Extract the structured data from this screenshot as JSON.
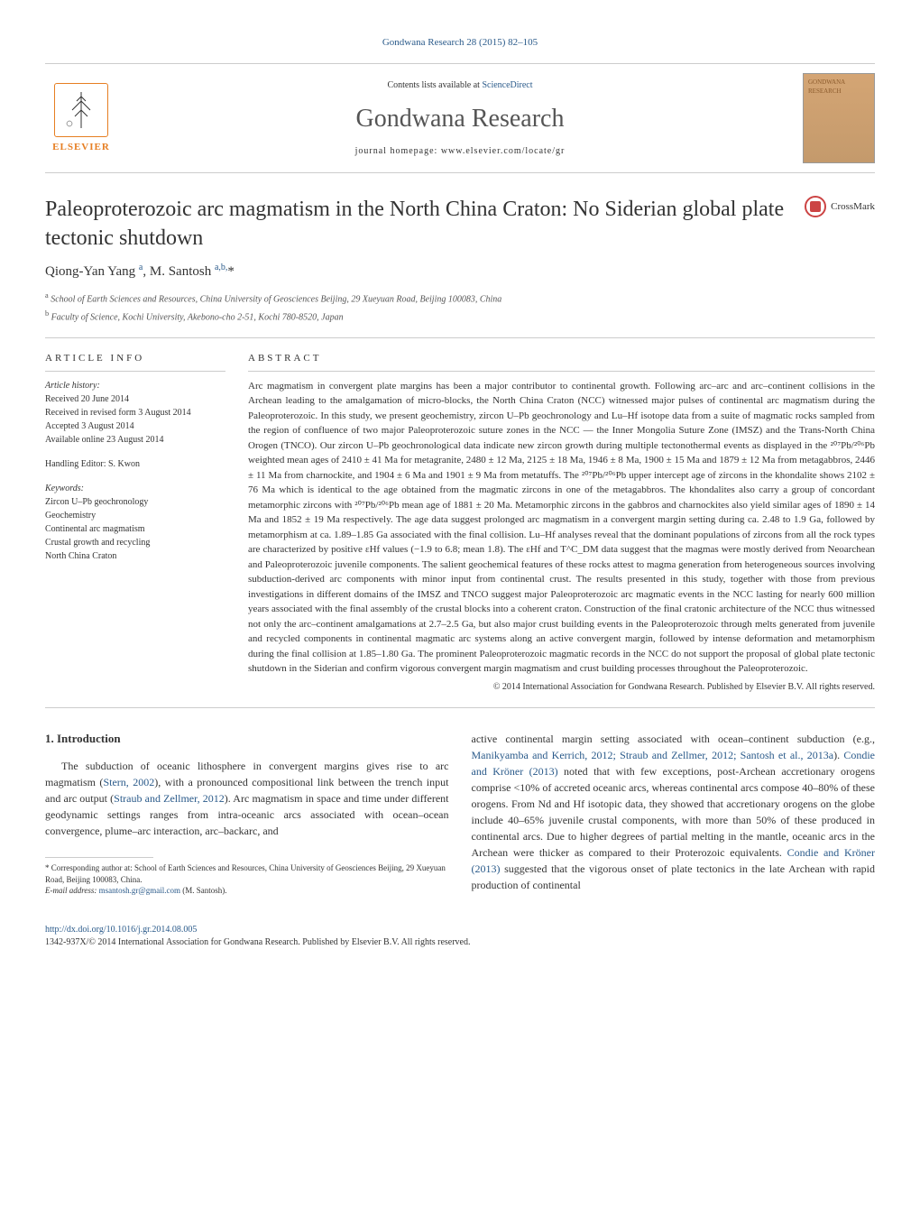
{
  "journal_ref": "Gondwana Research 28 (2015) 82–105",
  "header": {
    "contents_prefix": "Contents lists available at ",
    "contents_link": "ScienceDirect",
    "journal_name": "Gondwana Research",
    "homepage_label": "journal homepage: www.elsevier.com/locate/gr",
    "elsevier_label": "ELSEVIER",
    "cover_label": "GONDWANA RESEARCH"
  },
  "article": {
    "title": "Paleoproterozoic arc magmatism in the North China Craton: No Siderian global plate tectonic shutdown",
    "crossmark_label": "CrossMark",
    "authors_html": "Qiong-Yan Yang <sup>a</sup>, M. Santosh <sup>a,b,</sup>*",
    "affiliations": [
      "a   School of Earth Sciences and Resources, China University of Geosciences Beijing, 29 Xueyuan Road, Beijing 100083, China",
      "b   Faculty of Science, Kochi University, Akebono-cho 2-51, Kochi 780-8520, Japan"
    ]
  },
  "info": {
    "heading": "article info",
    "history_label": "Article history:",
    "history": [
      "Received 20 June 2014",
      "Received in revised form 3 August 2014",
      "Accepted 3 August 2014",
      "Available online 23 August 2014"
    ],
    "editor": "Handling Editor: S. Kwon",
    "keywords_label": "Keywords:",
    "keywords": [
      "Zircon U–Pb geochronology",
      "Geochemistry",
      "Continental arc magmatism",
      "Crustal growth and recycling",
      "North China Craton"
    ]
  },
  "abstract": {
    "heading": "abstract",
    "text": "Arc magmatism in convergent plate margins has been a major contributor to continental growth. Following arc–arc and arc–continent collisions in the Archean leading to the amalgamation of micro-blocks, the North China Craton (NCC) witnessed major pulses of continental arc magmatism during the Paleoproterozoic. In this study, we present geochemistry, zircon U–Pb geochronology and Lu–Hf isotope data from a suite of magmatic rocks sampled from the region of confluence of two major Paleoproterozoic suture zones in the NCC — the Inner Mongolia Suture Zone (IMSZ) and the Trans-North China Orogen (TNCO). Our zircon U–Pb geochronological data indicate new zircon growth during multiple tectonothermal events as displayed in the ²⁰⁷Pb/²⁰⁶Pb weighted mean ages of 2410 ± 41 Ma for metagranite, 2480 ± 12 Ma, 2125 ± 18 Ma, 1946 ± 8 Ma, 1900 ± 15 Ma and 1879 ± 12 Ma from metagabbros, 2446 ± 11 Ma from charnockite, and 1904 ± 6 Ma and 1901 ± 9 Ma from metatuffs. The ²⁰⁷Pb/²⁰⁶Pb upper intercept age of zircons in the khondalite shows 2102 ± 76 Ma which is identical to the age obtained from the magmatic zircons in one of the metagabbros. The khondalites also carry a group of concordant metamorphic zircons with ²⁰⁷Pb/²⁰⁶Pb mean age of 1881 ± 20 Ma. Metamorphic zircons in the gabbros and charnockites also yield similar ages of 1890 ± 14 Ma and 1852 ± 19 Ma respectively. The age data suggest prolonged arc magmatism in a convergent margin setting during ca. 2.48 to 1.9 Ga, followed by metamorphism at ca. 1.89–1.85 Ga associated with the final collision. Lu–Hf analyses reveal that the dominant populations of zircons from all the rock types are characterized by positive εHf values (−1.9 to 6.8; mean 1.8). The εHf and T^C_DM data suggest that the magmas were mostly derived from Neoarchean and Paleoproterozoic juvenile components. The salient geochemical features of these rocks attest to magma generation from heterogeneous sources involving subduction-derived arc components with minor input from continental crust. The results presented in this study, together with those from previous investigations in different domains of the IMSZ and TNCO suggest major Paleoproterozoic arc magmatic events in the NCC lasting for nearly 600 million years associated with the final assembly of the crustal blocks into a coherent craton. Construction of the final cratonic architecture of the NCC thus witnessed not only the arc–continent amalgamations at 2.7–2.5 Ga, but also major crust building events in the Paleoproterozoic through melts generated from juvenile and recycled components in continental magmatic arc systems along an active convergent margin, followed by intense deformation and metamorphism during the final collision at 1.85–1.80 Ga. The prominent Paleoproterozoic magmatic records in the NCC do not support the proposal of global plate tectonic shutdown in the Siderian and confirm vigorous convergent margin magmatism and crust building processes throughout the Paleoproterozoic.",
    "copyright": "© 2014 International Association for Gondwana Research. Published by Elsevier B.V. All rights reserved."
  },
  "intro": {
    "heading": "1. Introduction",
    "col1": "The subduction of oceanic lithosphere in convergent margins gives rise to arc magmatism (<span class=\"cite\">Stern, 2002</span>), with a pronounced compositional link between the trench input and arc output (<span class=\"cite\">Straub and Zellmer, 2012</span>). Arc magmatism in space and time under different geodynamic settings ranges from intra-oceanic arcs associated with ocean–ocean convergence, plume–arc interaction, arc–backarc, and",
    "col2": "active continental margin setting associated with ocean–continent subduction (e.g., <span class=\"cite\">Manikyamba and Kerrich, 2012; Straub and Zellmer, 2012; Santosh et al., 2013a</span>). <span class=\"cite\">Condie and Kröner (2013)</span> noted that with few exceptions, post-Archean accretionary orogens comprise &lt;10% of accreted oceanic arcs, whereas continental arcs compose 40–80% of these orogens. From Nd and Hf isotopic data, they showed that accretionary orogens on the globe include 40–65% juvenile crustal components, with more than 50% of these produced in continental arcs. Due to higher degrees of partial melting in the mantle, oceanic arcs in the Archean were thicker as compared to their Proterozoic equivalents. <span class=\"cite\">Condie and Kröner (2013)</span> suggested that the vigorous onset of plate tectonics in the late Archean with rapid production of continental"
  },
  "footnote": {
    "corr": "* Corresponding author at: School of Earth Sciences and Resources, China University of Geosciences Beijing, 29 Xueyuan Road, Beijing 100083, China.",
    "email_label": "E-mail address: ",
    "email": "msantosh.gr@gmail.com",
    "email_suffix": " (M. Santosh)."
  },
  "footer": {
    "doi": "http://dx.doi.org/10.1016/j.gr.2014.08.005",
    "issn": "1342-937X/© 2014 International Association for Gondwana Research. Published by Elsevier B.V. All rights reserved."
  },
  "colors": {
    "link": "#2a5a8a",
    "elsevier_orange": "#e67e22",
    "text": "#333333",
    "rule": "#cccccc"
  },
  "typography": {
    "title_fontsize": 24,
    "journal_name_fontsize": 28,
    "body_fontsize": 12,
    "abstract_fontsize": 11,
    "info_fontsize": 10,
    "footnote_fontsize": 9
  }
}
